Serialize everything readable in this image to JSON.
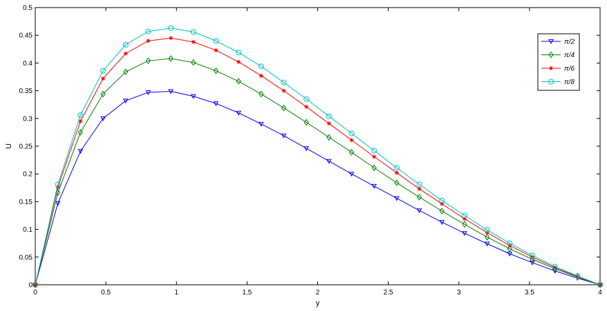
{
  "chart_data": {
    "type": "line",
    "xlabel": "y",
    "ylabel": "U",
    "xlim": [
      0,
      4
    ],
    "ylim": [
      0,
      0.5
    ],
    "xticks": [
      "0",
      "0.5",
      "1",
      "1.5",
      "2",
      "2.5",
      "3",
      "3.5",
      "4"
    ],
    "yticks": [
      "0",
      "0.05",
      "0.1",
      "0.15",
      "0.2",
      "0.25",
      "0.3",
      "0.35",
      "0.4",
      "0.45",
      "0.5"
    ],
    "grid": false,
    "legend_position": "top-right",
    "x": [
      0,
      0.16,
      0.32,
      0.48,
      0.64,
      0.8,
      0.96,
      1.12,
      1.28,
      1.44,
      1.6,
      1.76,
      1.92,
      2.08,
      2.24,
      2.4,
      2.56,
      2.72,
      2.88,
      3.04,
      3.2,
      3.36,
      3.52,
      3.68,
      3.84,
      4.0
    ],
    "series": [
      {
        "name": "π/2",
        "color": "#0000ff",
        "marker": "triangle-down",
        "values": [
          0,
          0.147,
          0.241,
          0.3,
          0.332,
          0.347,
          0.349,
          0.34,
          0.327,
          0.31,
          0.29,
          0.269,
          0.246,
          0.223,
          0.2,
          0.178,
          0.156,
          0.134,
          0.113,
          0.093,
          0.074,
          0.056,
          0.04,
          0.025,
          0.012,
          0
        ]
      },
      {
        "name": "π/4",
        "color": "#008000",
        "marker": "diamond",
        "values": [
          0,
          0.166,
          0.275,
          0.344,
          0.384,
          0.404,
          0.408,
          0.401,
          0.386,
          0.367,
          0.344,
          0.319,
          0.293,
          0.266,
          0.239,
          0.211,
          0.184,
          0.158,
          0.133,
          0.109,
          0.086,
          0.065,
          0.046,
          0.029,
          0.014,
          0
        ]
      },
      {
        "name": "π/6",
        "color": "#ff0000",
        "marker": "asterisk",
        "values": [
          0,
          0.176,
          0.295,
          0.372,
          0.417,
          0.44,
          0.445,
          0.438,
          0.423,
          0.402,
          0.377,
          0.35,
          0.321,
          0.291,
          0.261,
          0.231,
          0.202,
          0.173,
          0.146,
          0.119,
          0.094,
          0.071,
          0.05,
          0.031,
          0.015,
          0
        ]
      },
      {
        "name": "π/8",
        "color": "#00bfbf",
        "marker": "circle",
        "values": [
          0,
          0.181,
          0.306,
          0.386,
          0.433,
          0.457,
          0.463,
          0.456,
          0.44,
          0.419,
          0.394,
          0.365,
          0.335,
          0.304,
          0.273,
          0.242,
          0.211,
          0.181,
          0.152,
          0.125,
          0.099,
          0.075,
          0.053,
          0.033,
          0.016,
          0
        ]
      }
    ]
  }
}
